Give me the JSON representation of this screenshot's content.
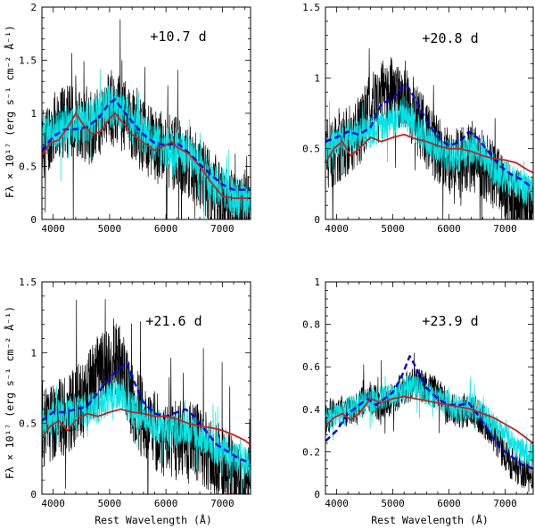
{
  "figure": {
    "ylabel": "Fλ × 10¹⁷ (erg s⁻¹ cm⁻² Å⁻¹)",
    "xlabel": "Rest Wavelength (Å)",
    "colors": {
      "observed_black": "#000000",
      "observed_cyan": "#00e5e5",
      "model_blue": "#0000e6",
      "model_red": "#d81818"
    }
  },
  "chart_data": [
    {
      "type": "line",
      "epoch": "+10.7 d",
      "xlim": [
        3800,
        7500
      ],
      "ylim": [
        0,
        2
      ],
      "xticks": [
        4000,
        5000,
        6000,
        7000
      ],
      "yticks": [
        0,
        0.5,
        1,
        1.5,
        2
      ],
      "ytick_labels": [
        "0",
        "0.5",
        "1",
        "1.5",
        "2"
      ],
      "series": [
        {
          "role": "observed-black",
          "x": [
            3800,
            4000,
            4200,
            4400,
            4600,
            4800,
            5000,
            5200,
            5400,
            5600,
            5800,
            6000,
            6200,
            6400,
            6600,
            6800,
            7000,
            7200,
            7500
          ],
          "y": [
            0.7,
            0.85,
            0.92,
            0.95,
            0.85,
            0.9,
            1.05,
            1.0,
            0.9,
            0.78,
            0.7,
            0.65,
            0.62,
            0.55,
            0.45,
            0.3,
            0.15,
            0.12,
            0.05
          ],
          "noise": 0.35,
          "seed": 11
        },
        {
          "role": "observed-cyan",
          "x": [
            3800,
            4000,
            4200,
            4400,
            4600,
            4800,
            5000,
            5200,
            5400,
            5600,
            5800,
            6000,
            6200,
            6400,
            6600,
            6800,
            7000,
            7200,
            7500
          ],
          "y": [
            0.78,
            0.85,
            0.88,
            0.9,
            0.92,
            0.97,
            1.08,
            1.0,
            0.9,
            0.8,
            0.72,
            0.68,
            0.66,
            0.6,
            0.5,
            0.35,
            0.3,
            0.22,
            0.15
          ],
          "noise": 0.2,
          "seed": 12
        },
        {
          "role": "model-blue",
          "dashed": true,
          "x": [
            3800,
            4000,
            4200,
            4400,
            4600,
            4800,
            5000,
            5100,
            5200,
            5400,
            5600,
            5800,
            6000,
            6200,
            6400,
            6600,
            6800,
            7000,
            7200,
            7500
          ],
          "y": [
            0.65,
            0.78,
            0.85,
            0.85,
            0.87,
            0.95,
            1.1,
            1.13,
            1.05,
            0.92,
            0.8,
            0.72,
            0.7,
            0.72,
            0.63,
            0.52,
            0.42,
            0.33,
            0.28,
            0.28
          ]
        },
        {
          "role": "model-red",
          "dashed": false,
          "x": [
            3800,
            3950,
            4100,
            4300,
            4400,
            4550,
            4700,
            4850,
            5000,
            5100,
            5250,
            5400,
            5600,
            5800,
            6000,
            6100,
            6200,
            6400,
            6600,
            6800,
            7000,
            7200,
            7500
          ],
          "y": [
            0.6,
            0.72,
            0.75,
            0.9,
            1.0,
            0.88,
            0.8,
            0.83,
            0.95,
            1.0,
            0.9,
            0.8,
            0.72,
            0.65,
            0.7,
            0.73,
            0.68,
            0.62,
            0.5,
            0.35,
            0.22,
            0.2,
            0.2
          ]
        }
      ]
    },
    {
      "type": "line",
      "epoch": "+20.8 d",
      "xlim": [
        3800,
        7500
      ],
      "ylim": [
        0,
        1.5
      ],
      "xticks": [
        4000,
        5000,
        6000,
        7000
      ],
      "yticks": [
        0,
        0.5,
        1,
        1.5
      ],
      "ytick_labels": [
        "0",
        "0.5",
        "1",
        "1.5"
      ],
      "series": [
        {
          "role": "observed-black",
          "x": [
            3800,
            4000,
            4200,
            4400,
            4600,
            4800,
            5000,
            5200,
            5400,
            5600,
            5800,
            6000,
            6200,
            6400,
            6600,
            6800,
            7000,
            7200,
            7500
          ],
          "y": [
            0.45,
            0.5,
            0.55,
            0.62,
            0.8,
            0.88,
            0.9,
            0.9,
            0.72,
            0.6,
            0.5,
            0.42,
            0.4,
            0.45,
            0.38,
            0.3,
            0.2,
            0.1,
            0.05
          ],
          "noise": 0.25,
          "seed": 21
        },
        {
          "role": "observed-cyan",
          "x": [
            3800,
            4000,
            4200,
            4400,
            4600,
            4800,
            5000,
            5200,
            5400,
            5600,
            5800,
            6000,
            6200,
            6400,
            6600,
            6800,
            7000,
            7200,
            7500
          ],
          "y": [
            0.5,
            0.55,
            0.58,
            0.6,
            0.62,
            0.65,
            0.7,
            0.75,
            0.65,
            0.58,
            0.5,
            0.45,
            0.45,
            0.5,
            0.45,
            0.35,
            0.3,
            0.25,
            0.2
          ],
          "noise": 0.12,
          "seed": 22
        },
        {
          "role": "model-blue",
          "dashed": true,
          "x": [
            3800,
            4000,
            4200,
            4400,
            4600,
            4800,
            5000,
            5150,
            5250,
            5400,
            5600,
            5800,
            6000,
            6200,
            6350,
            6500,
            6700,
            6900,
            7100,
            7300,
            7500
          ],
          "y": [
            0.55,
            0.58,
            0.62,
            0.6,
            0.65,
            0.82,
            0.85,
            0.93,
            0.95,
            0.85,
            0.7,
            0.58,
            0.52,
            0.55,
            0.62,
            0.58,
            0.48,
            0.38,
            0.32,
            0.28,
            0.22
          ]
        },
        {
          "role": "model-red",
          "dashed": false,
          "x": [
            3800,
            3950,
            4100,
            4250,
            4400,
            4600,
            4800,
            5000,
            5200,
            5400,
            5600,
            5800,
            6000,
            6200,
            6400,
            6600,
            6800,
            7000,
            7200,
            7400,
            7500
          ],
          "y": [
            0.4,
            0.5,
            0.55,
            0.45,
            0.5,
            0.58,
            0.55,
            0.58,
            0.6,
            0.57,
            0.55,
            0.52,
            0.5,
            0.5,
            0.48,
            0.45,
            0.43,
            0.42,
            0.4,
            0.35,
            0.33
          ]
        }
      ]
    },
    {
      "type": "line",
      "epoch": "+21.6 d",
      "xlim": [
        3800,
        7500
      ],
      "ylim": [
        0,
        1.5
      ],
      "xticks": [
        4000,
        5000,
        6000,
        7000
      ],
      "yticks": [
        0,
        0.5,
        1,
        1.5
      ],
      "ytick_labels": [
        "0",
        "0.5",
        "1",
        "1.5"
      ],
      "series": [
        {
          "role": "observed-black",
          "x": [
            3800,
            4000,
            4200,
            4400,
            4600,
            4800,
            5000,
            5200,
            5400,
            5600,
            5800,
            6000,
            6200,
            6400,
            6600,
            6800,
            7000,
            7200,
            7500
          ],
          "y": [
            0.45,
            0.52,
            0.55,
            0.62,
            0.7,
            0.85,
            0.95,
            0.95,
            0.65,
            0.55,
            0.45,
            0.38,
            0.38,
            0.42,
            0.35,
            0.28,
            0.2,
            0.12,
            0.05
          ],
          "noise": 0.28,
          "seed": 31
        },
        {
          "role": "observed-cyan",
          "x": [
            3800,
            4000,
            4200,
            4400,
            4600,
            4800,
            5000,
            5200,
            5400,
            5600,
            5800,
            6000,
            6200,
            6400,
            6600,
            6800,
            7000,
            7200,
            7500
          ],
          "y": [
            0.5,
            0.55,
            0.57,
            0.58,
            0.6,
            0.62,
            0.68,
            0.72,
            0.6,
            0.55,
            0.5,
            0.45,
            0.45,
            0.48,
            0.42,
            0.35,
            0.3,
            0.25,
            0.2
          ],
          "noise": 0.12,
          "seed": 32
        },
        {
          "role": "model-blue",
          "dashed": true,
          "x": [
            3800,
            4000,
            4200,
            4400,
            4600,
            4800,
            5000,
            5150,
            5300,
            5450,
            5600,
            5800,
            6000,
            6200,
            6350,
            6500,
            6700,
            6900,
            7100,
            7300,
            7500
          ],
          "y": [
            0.52,
            0.58,
            0.58,
            0.6,
            0.62,
            0.72,
            0.82,
            0.88,
            0.93,
            0.78,
            0.65,
            0.57,
            0.55,
            0.58,
            0.6,
            0.55,
            0.45,
            0.35,
            0.3,
            0.25,
            0.22
          ]
        },
        {
          "role": "model-red",
          "dashed": false,
          "x": [
            3800,
            3950,
            4100,
            4250,
            4400,
            4600,
            4800,
            5000,
            5200,
            5400,
            5600,
            5800,
            6000,
            6200,
            6400,
            6600,
            6800,
            7000,
            7200,
            7400,
            7500
          ],
          "y": [
            0.4,
            0.48,
            0.52,
            0.45,
            0.52,
            0.57,
            0.55,
            0.58,
            0.6,
            0.58,
            0.57,
            0.55,
            0.55,
            0.53,
            0.5,
            0.48,
            0.47,
            0.45,
            0.42,
            0.38,
            0.35
          ]
        }
      ]
    },
    {
      "type": "line",
      "epoch": "+23.9 d",
      "xlim": [
        3800,
        7500
      ],
      "ylim": [
        0,
        1
      ],
      "xticks": [
        4000,
        5000,
        6000,
        7000
      ],
      "yticks": [
        0,
        0.2,
        0.4,
        0.6,
        0.8,
        1
      ],
      "ytick_labels": [
        "0",
        "0.2",
        "0.4",
        "0.6",
        "0.8",
        "1"
      ],
      "series": [
        {
          "role": "observed-black",
          "x": [
            3800,
            4000,
            4200,
            4400,
            4600,
            4800,
            5000,
            5200,
            5400,
            5600,
            5800,
            6000,
            6200,
            6400,
            6600,
            6800,
            7000,
            7200,
            7500
          ],
          "y": [
            0.35,
            0.4,
            0.38,
            0.42,
            0.45,
            0.42,
            0.45,
            0.5,
            0.52,
            0.5,
            0.48,
            0.4,
            0.38,
            0.4,
            0.35,
            0.28,
            0.18,
            0.12,
            0.08
          ],
          "noise": 0.08,
          "seed": 41
        },
        {
          "role": "observed-cyan",
          "x": [
            3800,
            4000,
            4200,
            4400,
            4600,
            4800,
            5000,
            5200,
            5400,
            5600,
            5800,
            6000,
            6200,
            6400,
            6600,
            6800,
            7000,
            7200,
            7500
          ],
          "y": [
            0.35,
            0.38,
            0.4,
            0.42,
            0.44,
            0.45,
            0.46,
            0.5,
            0.5,
            0.48,
            0.45,
            0.42,
            0.4,
            0.42,
            0.38,
            0.32,
            0.28,
            0.22,
            0.18
          ],
          "noise": 0.06,
          "seed": 42
        },
        {
          "role": "model-blue",
          "dashed": true,
          "x": [
            3800,
            4000,
            4200,
            4400,
            4550,
            4700,
            4850,
            5000,
            5150,
            5300,
            5450,
            5600,
            5800,
            6000,
            6200,
            6350,
            6500,
            6700,
            6900,
            7100,
            7300,
            7500
          ],
          "y": [
            0.25,
            0.3,
            0.38,
            0.42,
            0.45,
            0.42,
            0.45,
            0.48,
            0.55,
            0.65,
            0.58,
            0.5,
            0.45,
            0.42,
            0.42,
            0.43,
            0.38,
            0.3,
            0.22,
            0.18,
            0.14,
            0.12
          ]
        },
        {
          "role": "model-red",
          "dashed": false,
          "x": [
            3800,
            3950,
            4100,
            4250,
            4400,
            4600,
            4800,
            5000,
            5200,
            5400,
            5600,
            5800,
            6000,
            6200,
            6400,
            6600,
            6800,
            7000,
            7200,
            7400,
            7500
          ],
          "y": [
            0.32,
            0.36,
            0.38,
            0.35,
            0.38,
            0.45,
            0.43,
            0.45,
            0.46,
            0.45,
            0.44,
            0.43,
            0.42,
            0.41,
            0.4,
            0.38,
            0.36,
            0.33,
            0.3,
            0.26,
            0.24
          ]
        }
      ]
    }
  ]
}
